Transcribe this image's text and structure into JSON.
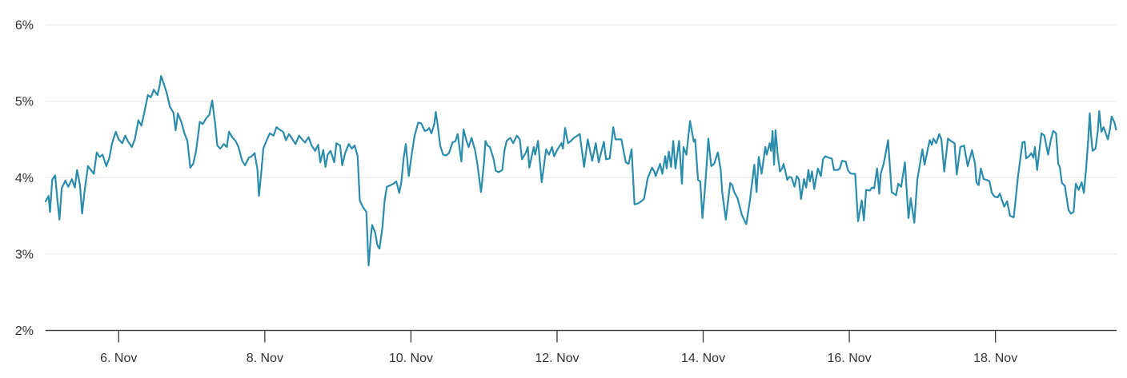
{
  "chart_data": {
    "type": "line",
    "title": "",
    "legend": false,
    "grid": true,
    "unit": "%",
    "line_color": "#2b8cab",
    "x_axis": {
      "type": "datetime",
      "unit_note": "days since 5. Nov 00:00 (read off tick spacing)",
      "min": 0,
      "max": 14.65,
      "ticks": [
        {
          "t": 1,
          "label": "6. Nov"
        },
        {
          "t": 3,
          "label": "8. Nov"
        },
        {
          "t": 5,
          "label": "10. Nov"
        },
        {
          "t": 7,
          "label": "12. Nov"
        },
        {
          "t": 9,
          "label": "14. Nov"
        },
        {
          "t": 11,
          "label": "16. Nov"
        },
        {
          "t": 13,
          "label": "18. Nov"
        }
      ]
    },
    "y_axis": {
      "min": 2,
      "max": 6.15,
      "ticks": [
        {
          "v": 2,
          "label": "2%"
        },
        {
          "v": 3,
          "label": "3%"
        },
        {
          "v": 4,
          "label": "4%"
        },
        {
          "v": 5,
          "label": "5%"
        },
        {
          "v": 6,
          "label": "6%"
        }
      ]
    },
    "points": [
      [
        0.0,
        3.69
      ],
      [
        0.04,
        3.76
      ],
      [
        0.06,
        3.55
      ],
      [
        0.09,
        3.97
      ],
      [
        0.13,
        4.03
      ],
      [
        0.16,
        3.72
      ],
      [
        0.19,
        3.45
      ],
      [
        0.22,
        3.86
      ],
      [
        0.27,
        3.96
      ],
      [
        0.31,
        3.88
      ],
      [
        0.36,
        3.98
      ],
      [
        0.4,
        3.87
      ],
      [
        0.43,
        4.1
      ],
      [
        0.47,
        3.9
      ],
      [
        0.5,
        3.53
      ],
      [
        0.53,
        3.8
      ],
      [
        0.58,
        4.15
      ],
      [
        0.62,
        4.1
      ],
      [
        0.66,
        4.05
      ],
      [
        0.7,
        4.33
      ],
      [
        0.74,
        4.27
      ],
      [
        0.78,
        4.3
      ],
      [
        0.83,
        4.15
      ],
      [
        0.87,
        4.25
      ],
      [
        0.91,
        4.45
      ],
      [
        0.96,
        4.6
      ],
      [
        1.0,
        4.5
      ],
      [
        1.05,
        4.45
      ],
      [
        1.09,
        4.55
      ],
      [
        1.13,
        4.47
      ],
      [
        1.18,
        4.4
      ],
      [
        1.22,
        4.5
      ],
      [
        1.27,
        4.75
      ],
      [
        1.31,
        4.68
      ],
      [
        1.35,
        4.85
      ],
      [
        1.4,
        5.08
      ],
      [
        1.44,
        5.05
      ],
      [
        1.48,
        5.15
      ],
      [
        1.53,
        5.08
      ],
      [
        1.56,
        5.2
      ],
      [
        1.58,
        5.33
      ],
      [
        1.62,
        5.22
      ],
      [
        1.66,
        5.1
      ],
      [
        1.7,
        4.93
      ],
      [
        1.75,
        4.85
      ],
      [
        1.78,
        4.62
      ],
      [
        1.81,
        4.84
      ],
      [
        1.86,
        4.72
      ],
      [
        1.9,
        4.58
      ],
      [
        1.94,
        4.48
      ],
      [
        1.98,
        4.13
      ],
      [
        2.02,
        4.18
      ],
      [
        2.06,
        4.35
      ],
      [
        2.11,
        4.73
      ],
      [
        2.15,
        4.7
      ],
      [
        2.2,
        4.78
      ],
      [
        2.24,
        4.82
      ],
      [
        2.28,
        5.01
      ],
      [
        2.32,
        4.7
      ],
      [
        2.35,
        4.42
      ],
      [
        2.39,
        4.38
      ],
      [
        2.44,
        4.44
      ],
      [
        2.48,
        4.4
      ],
      [
        2.51,
        4.6
      ],
      [
        2.56,
        4.52
      ],
      [
        2.6,
        4.48
      ],
      [
        2.64,
        4.4
      ],
      [
        2.69,
        4.22
      ],
      [
        2.73,
        4.16
      ],
      [
        2.78,
        4.26
      ],
      [
        2.82,
        4.28
      ],
      [
        2.86,
        4.32
      ],
      [
        2.9,
        4.1
      ],
      [
        2.92,
        3.76
      ],
      [
        2.95,
        4.05
      ],
      [
        2.98,
        4.38
      ],
      [
        3.03,
        4.5
      ],
      [
        3.07,
        4.58
      ],
      [
        3.12,
        4.55
      ],
      [
        3.16,
        4.66
      ],
      [
        3.2,
        4.63
      ],
      [
        3.25,
        4.6
      ],
      [
        3.29,
        4.49
      ],
      [
        3.33,
        4.57
      ],
      [
        3.38,
        4.5
      ],
      [
        3.42,
        4.44
      ],
      [
        3.47,
        4.55
      ],
      [
        3.51,
        4.5
      ],
      [
        3.55,
        4.46
      ],
      [
        3.6,
        4.53
      ],
      [
        3.64,
        4.42
      ],
      [
        3.69,
        4.35
      ],
      [
        3.73,
        4.43
      ],
      [
        3.76,
        4.2
      ],
      [
        3.8,
        4.36
      ],
      [
        3.83,
        4.14
      ],
      [
        3.86,
        4.3
      ],
      [
        3.9,
        4.35
      ],
      [
        3.95,
        4.2
      ],
      [
        3.98,
        4.45
      ],
      [
        4.03,
        4.42
      ],
      [
        4.06,
        4.16
      ],
      [
        4.1,
        4.32
      ],
      [
        4.15,
        4.44
      ],
      [
        4.19,
        4.38
      ],
      [
        4.23,
        4.42
      ],
      [
        4.27,
        4.28
      ],
      [
        4.3,
        3.7
      ],
      [
        4.34,
        3.62
      ],
      [
        4.39,
        3.55
      ],
      [
        4.41,
        3.1
      ],
      [
        4.42,
        2.85
      ],
      [
        4.45,
        3.22
      ],
      [
        4.47,
        3.38
      ],
      [
        4.51,
        3.28
      ],
      [
        4.54,
        3.12
      ],
      [
        4.57,
        3.07
      ],
      [
        4.61,
        3.35
      ],
      [
        4.64,
        3.7
      ],
      [
        4.67,
        3.88
      ],
      [
        4.72,
        3.9
      ],
      [
        4.76,
        3.92
      ],
      [
        4.8,
        3.95
      ],
      [
        4.84,
        3.8
      ],
      [
        4.87,
        3.95
      ],
      [
        4.9,
        4.26
      ],
      [
        4.93,
        4.44
      ],
      [
        4.97,
        4.02
      ],
      [
        5.01,
        4.3
      ],
      [
        5.05,
        4.55
      ],
      [
        5.1,
        4.72
      ],
      [
        5.14,
        4.71
      ],
      [
        5.19,
        4.61
      ],
      [
        5.22,
        4.62
      ],
      [
        5.25,
        4.65
      ],
      [
        5.28,
        4.58
      ],
      [
        5.32,
        4.7
      ],
      [
        5.34,
        4.86
      ],
      [
        5.37,
        4.66
      ],
      [
        5.4,
        4.42
      ],
      [
        5.44,
        4.3
      ],
      [
        5.48,
        4.29
      ],
      [
        5.52,
        4.32
      ],
      [
        5.57,
        4.46
      ],
      [
        5.61,
        4.48
      ],
      [
        5.64,
        4.57
      ],
      [
        5.69,
        4.21
      ],
      [
        5.72,
        4.63
      ],
      [
        5.76,
        4.48
      ],
      [
        5.79,
        4.4
      ],
      [
        5.83,
        4.52
      ],
      [
        5.88,
        4.35
      ],
      [
        5.91,
        4.17
      ],
      [
        5.94,
        3.95
      ],
      [
        5.96,
        3.81
      ],
      [
        6.0,
        4.2
      ],
      [
        6.02,
        4.48
      ],
      [
        6.05,
        4.42
      ],
      [
        6.08,
        4.4
      ],
      [
        6.13,
        4.25
      ],
      [
        6.16,
        4.09
      ],
      [
        6.2,
        4.07
      ],
      [
        6.25,
        4.1
      ],
      [
        6.28,
        4.35
      ],
      [
        6.31,
        4.48
      ],
      [
        6.36,
        4.52
      ],
      [
        6.4,
        4.45
      ],
      [
        6.45,
        4.55
      ],
      [
        6.49,
        4.5
      ],
      [
        6.52,
        4.24
      ],
      [
        6.57,
        4.32
      ],
      [
        6.6,
        4.4
      ],
      [
        6.62,
        4.13
      ],
      [
        6.68,
        4.4
      ],
      [
        6.7,
        4.3
      ],
      [
        6.74,
        4.48
      ],
      [
        6.79,
        3.94
      ],
      [
        6.85,
        4.37
      ],
      [
        6.89,
        4.3
      ],
      [
        6.93,
        4.4
      ],
      [
        6.96,
        4.28
      ],
      [
        7.0,
        4.36
      ],
      [
        7.06,
        4.45
      ],
      [
        7.08,
        4.38
      ],
      [
        7.11,
        4.65
      ],
      [
        7.15,
        4.45
      ],
      [
        7.19,
        4.48
      ],
      [
        7.23,
        4.52
      ],
      [
        7.28,
        4.55
      ],
      [
        7.31,
        4.57
      ],
      [
        7.37,
        4.14
      ],
      [
        7.42,
        4.5
      ],
      [
        7.48,
        4.22
      ],
      [
        7.53,
        4.45
      ],
      [
        7.57,
        4.2
      ],
      [
        7.64,
        4.47
      ],
      [
        7.67,
        4.24
      ],
      [
        7.72,
        4.25
      ],
      [
        7.77,
        4.66
      ],
      [
        7.8,
        4.5
      ],
      [
        7.85,
        4.5
      ],
      [
        7.88,
        4.5
      ],
      [
        7.94,
        4.2
      ],
      [
        7.98,
        4.18
      ],
      [
        8.02,
        4.37
      ],
      [
        8.06,
        3.65
      ],
      [
        8.1,
        3.66
      ],
      [
        8.14,
        3.68
      ],
      [
        8.19,
        3.72
      ],
      [
        8.24,
        3.99
      ],
      [
        8.3,
        4.13
      ],
      [
        8.33,
        4.08
      ],
      [
        8.35,
        4.02
      ],
      [
        8.41,
        4.18
      ],
      [
        8.44,
        4.05
      ],
      [
        8.48,
        4.28
      ],
      [
        8.5,
        4.12
      ],
      [
        8.53,
        4.34
      ],
      [
        8.56,
        4.14
      ],
      [
        8.59,
        4.48
      ],
      [
        8.62,
        4.12
      ],
      [
        8.67,
        4.48
      ],
      [
        8.71,
        3.92
      ],
      [
        8.73,
        4.4
      ],
      [
        8.77,
        4.3
      ],
      [
        8.82,
        4.74
      ],
      [
        8.87,
        4.47
      ],
      [
        8.89,
        4.5
      ],
      [
        8.93,
        3.97
      ],
      [
        8.96,
        3.95
      ],
      [
        8.99,
        3.47
      ],
      [
        9.02,
        3.8
      ],
      [
        9.05,
        4.2
      ],
      [
        9.07,
        4.51
      ],
      [
        9.11,
        4.15
      ],
      [
        9.15,
        4.18
      ],
      [
        9.2,
        4.33
      ],
      [
        9.24,
        4.1
      ],
      [
        9.26,
        3.81
      ],
      [
        9.31,
        3.45
      ],
      [
        9.37,
        3.93
      ],
      [
        9.4,
        3.9
      ],
      [
        9.42,
        3.82
      ],
      [
        9.47,
        3.73
      ],
      [
        9.53,
        3.51
      ],
      [
        9.59,
        3.39
      ],
      [
        9.64,
        3.7
      ],
      [
        9.7,
        4.17
      ],
      [
        9.73,
        3.81
      ],
      [
        9.76,
        4.27
      ],
      [
        9.8,
        4.05
      ],
      [
        9.85,
        4.4
      ],
      [
        9.87,
        4.3
      ],
      [
        9.91,
        4.45
      ],
      [
        9.93,
        4.35
      ],
      [
        9.95,
        4.61
      ],
      [
        9.97,
        4.17
      ],
      [
        9.99,
        4.62
      ],
      [
        10.02,
        4.3
      ],
      [
        10.05,
        4.08
      ],
      [
        10.08,
        4.12
      ],
      [
        10.1,
        4.18
      ],
      [
        10.13,
        4.06
      ],
      [
        10.15,
        3.97
      ],
      [
        10.18,
        4.01
      ],
      [
        10.21,
        4.0
      ],
      [
        10.25,
        3.88
      ],
      [
        10.28,
        4.02
      ],
      [
        10.31,
        3.98
      ],
      [
        10.34,
        3.72
      ],
      [
        10.38,
        3.98
      ],
      [
        10.41,
        3.87
      ],
      [
        10.44,
        4.1
      ],
      [
        10.46,
        3.95
      ],
      [
        10.49,
        4.08
      ],
      [
        10.52,
        3.85
      ],
      [
        10.57,
        4.12
      ],
      [
        10.61,
        4.02
      ],
      [
        10.64,
        4.24
      ],
      [
        10.67,
        4.28
      ],
      [
        10.72,
        4.26
      ],
      [
        10.76,
        4.25
      ],
      [
        10.79,
        4.1
      ],
      [
        10.84,
        4.1
      ],
      [
        10.87,
        4.12
      ],
      [
        10.9,
        4.22
      ],
      [
        10.95,
        4.21
      ],
      [
        10.98,
        4.1
      ],
      [
        11.01,
        4.06
      ],
      [
        11.04,
        4.05
      ],
      [
        11.08,
        4.05
      ],
      [
        11.12,
        3.43
      ],
      [
        11.17,
        3.7
      ],
      [
        11.2,
        3.44
      ],
      [
        11.23,
        3.84
      ],
      [
        11.28,
        3.83
      ],
      [
        11.31,
        3.87
      ],
      [
        11.34,
        3.86
      ],
      [
        11.38,
        4.12
      ],
      [
        11.41,
        3.79
      ],
      [
        11.43,
        4.05
      ],
      [
        11.47,
        4.18
      ],
      [
        11.53,
        4.49
      ],
      [
        11.58,
        3.81
      ],
      [
        11.64,
        3.77
      ],
      [
        11.67,
        3.92
      ],
      [
        11.71,
        3.88
      ],
      [
        11.76,
        4.2
      ],
      [
        11.81,
        3.47
      ],
      [
        11.84,
        3.73
      ],
      [
        11.89,
        3.41
      ],
      [
        11.93,
        3.97
      ],
      [
        12.0,
        4.37
      ],
      [
        12.03,
        4.17
      ],
      [
        12.1,
        4.49
      ],
      [
        12.13,
        4.43
      ],
      [
        12.15,
        4.51
      ],
      [
        12.19,
        4.45
      ],
      [
        12.23,
        4.57
      ],
      [
        12.26,
        4.5
      ],
      [
        12.3,
        4.08
      ],
      [
        12.35,
        4.51
      ],
      [
        12.39,
        4.48
      ],
      [
        12.44,
        4.45
      ],
      [
        12.47,
        4.04
      ],
      [
        12.52,
        4.4
      ],
      [
        12.57,
        4.42
      ],
      [
        12.62,
        4.15
      ],
      [
        12.68,
        4.36
      ],
      [
        12.72,
        4.18
      ],
      [
        12.74,
        3.94
      ],
      [
        12.77,
        3.9
      ],
      [
        12.8,
        4.12
      ],
      [
        12.84,
        3.98
      ],
      [
        12.88,
        3.97
      ],
      [
        12.92,
        3.95
      ],
      [
        12.95,
        3.8
      ],
      [
        12.99,
        3.75
      ],
      [
        13.03,
        3.74
      ],
      [
        13.06,
        3.79
      ],
      [
        13.12,
        3.62
      ],
      [
        13.16,
        3.69
      ],
      [
        13.2,
        3.5
      ],
      [
        13.25,
        3.48
      ],
      [
        13.31,
        4.02
      ],
      [
        13.37,
        4.46
      ],
      [
        13.4,
        4.47
      ],
      [
        13.42,
        4.25
      ],
      [
        13.46,
        4.28
      ],
      [
        13.49,
        4.32
      ],
      [
        13.52,
        4.26
      ],
      [
        13.54,
        4.4
      ],
      [
        13.57,
        4.1
      ],
      [
        13.63,
        4.58
      ],
      [
        13.67,
        4.55
      ],
      [
        13.72,
        4.3
      ],
      [
        13.76,
        4.5
      ],
      [
        13.79,
        4.61
      ],
      [
        13.83,
        4.58
      ],
      [
        13.86,
        4.18
      ],
      [
        13.88,
        4.14
      ],
      [
        13.91,
        3.93
      ],
      [
        13.95,
        3.89
      ],
      [
        14.0,
        3.58
      ],
      [
        14.03,
        3.53
      ],
      [
        14.07,
        3.55
      ],
      [
        14.1,
        3.92
      ],
      [
        14.14,
        3.84
      ],
      [
        14.18,
        3.94
      ],
      [
        14.21,
        3.8
      ],
      [
        14.24,
        4.1
      ],
      [
        14.27,
        4.5
      ],
      [
        14.29,
        4.84
      ],
      [
        14.31,
        4.55
      ],
      [
        14.33,
        4.35
      ],
      [
        14.37,
        4.38
      ],
      [
        14.4,
        4.6
      ],
      [
        14.42,
        4.87
      ],
      [
        14.45,
        4.6
      ],
      [
        14.48,
        4.66
      ],
      [
        14.51,
        4.58
      ],
      [
        14.54,
        4.5
      ],
      [
        14.57,
        4.65
      ],
      [
        14.59,
        4.8
      ],
      [
        14.63,
        4.72
      ],
      [
        14.65,
        4.63
      ]
    ]
  },
  "colors": {
    "line": "#2b8cab",
    "grid": "#e6e6e6",
    "axis": "#42474c",
    "label": "#333333",
    "background": "#ffffff"
  }
}
